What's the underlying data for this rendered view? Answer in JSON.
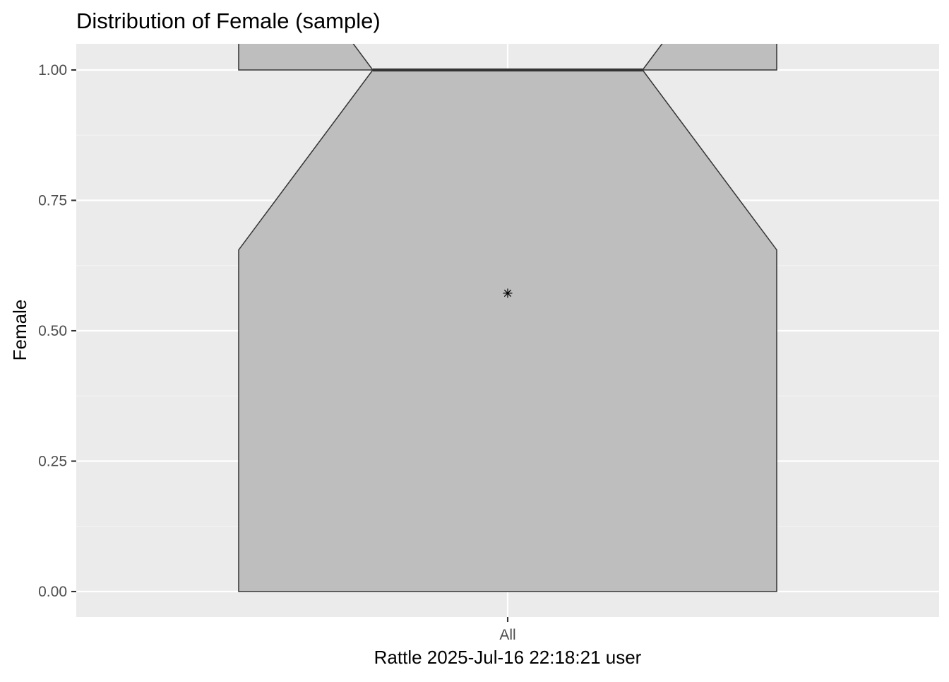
{
  "chart_data": {
    "type": "box",
    "title": "Distribution of Female (sample)",
    "xlabel": "Rattle 2025-Jul-16 22:18:21 user",
    "ylabel": "Female",
    "categories": [
      "All"
    ],
    "y_ticks": [
      0.0,
      0.25,
      0.5,
      0.75,
      1.0
    ],
    "y_tick_labels": [
      "0.00",
      "0.25",
      "0.50",
      "0.75",
      "1.00"
    ],
    "ylim": [
      -0.05,
      1.05
    ],
    "notched": true,
    "boxes": [
      {
        "category": "All",
        "min": 0,
        "q1": 0,
        "median": 1,
        "q3": 1,
        "max": 1,
        "notch_lower": 0.655,
        "notch_upper": 1.345,
        "mean": 0.572
      }
    ],
    "grid": true,
    "legend": "none",
    "colors": {
      "panel_background": "#EBEBEB",
      "grid_major": "#FFFFFF",
      "grid_minor": "#F5F5F5",
      "box_fill": "#BEBEBE",
      "box_stroke": "#333333",
      "text": "#000000",
      "tick_text": "#4D4D4D"
    }
  }
}
